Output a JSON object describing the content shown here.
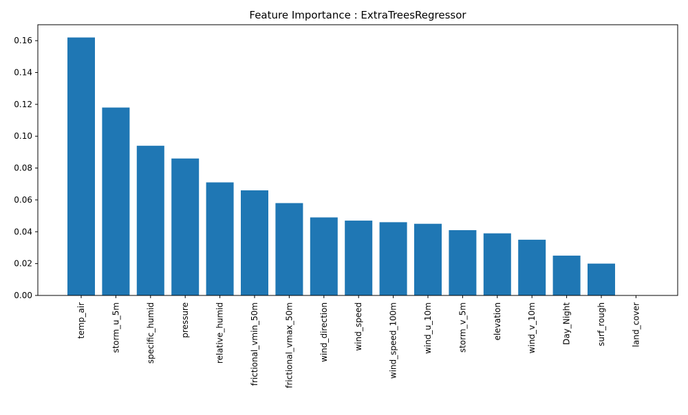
{
  "chart_data": {
    "type": "bar",
    "title": "Feature Importance : ExtraTreesRegressor",
    "xlabel": "",
    "ylabel": "",
    "categories": [
      "temp_air",
      "storm_u_5m",
      "specific_humid",
      "pressure",
      "relative_humid",
      "frictional_vmin_50m",
      "frictional_vmax_50m",
      "wind_direction",
      "wind_speed",
      "wind_speed_100m",
      "wind_u_10m",
      "storm_v_5m",
      "elevation",
      "wind_v_10m",
      "Day_Night",
      "surf_rough",
      "land_cover"
    ],
    "values": [
      0.162,
      0.118,
      0.094,
      0.086,
      0.071,
      0.066,
      0.058,
      0.049,
      0.047,
      0.046,
      0.045,
      0.041,
      0.039,
      0.035,
      0.025,
      0.02,
      0.0
    ],
    "ylim": [
      0,
      0.17
    ],
    "yticks": [
      0.0,
      0.02,
      0.04,
      0.06,
      0.08,
      0.1,
      0.12,
      0.14,
      0.16
    ],
    "ytick_labels": [
      "0.00",
      "0.02",
      "0.04",
      "0.06",
      "0.08",
      "0.10",
      "0.12",
      "0.14",
      "0.16"
    ],
    "grid": false,
    "legend": "none",
    "bar_color": "#1f77b4"
  }
}
